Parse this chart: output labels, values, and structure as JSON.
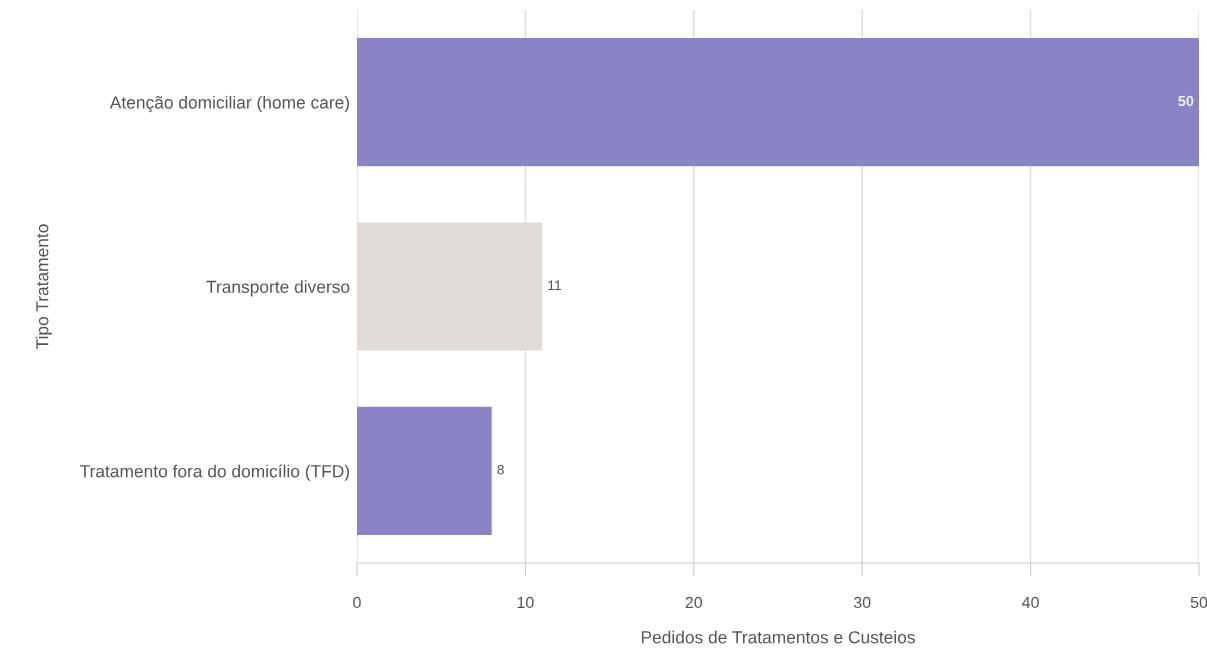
{
  "chart_data": {
    "type": "bar",
    "orientation": "horizontal",
    "categories": [
      "Atenção domiciliar (home care)",
      "Transporte diverso",
      "Tratamento fora do domicílio (TFD)"
    ],
    "values": [
      50,
      11,
      8
    ],
    "colors": [
      "#8a84c6",
      "#e0dbd7",
      "#8a84c6"
    ],
    "xlabel": "Pedidos de Tratamentos e Custeios",
    "ylabel": "Tipo Tratamento",
    "xlim": [
      0,
      50
    ],
    "xticks": [
      0,
      10,
      20,
      30,
      40,
      50
    ],
    "grid": "x",
    "data_labels": true,
    "legend": false
  }
}
